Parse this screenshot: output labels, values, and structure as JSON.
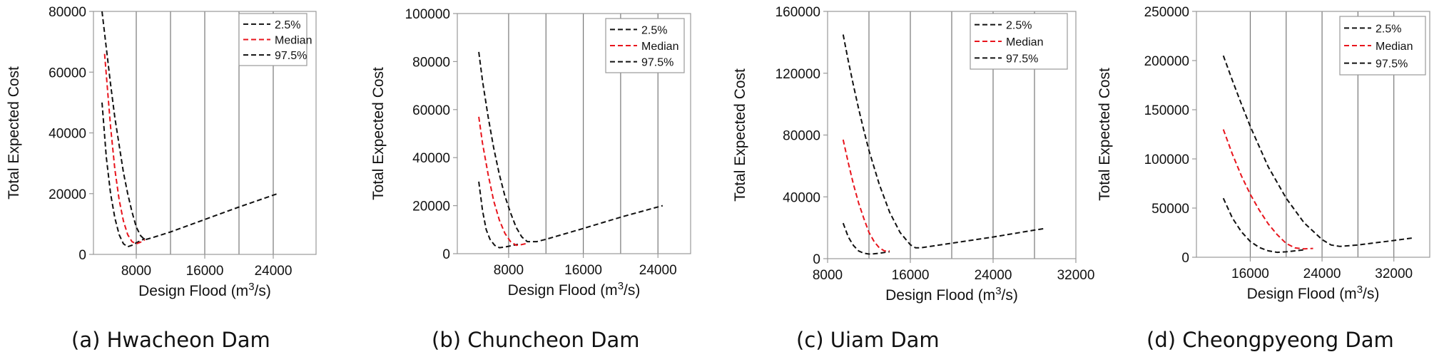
{
  "colors": {
    "bound": "#111111",
    "median": "#e8141c",
    "grid": "#777777",
    "frame": "#999999"
  },
  "chart_data": [
    {
      "type": "line",
      "caption": "(a) Hwacheon Dam",
      "xlabel": "Design Flood (m",
      "xlabel_sup": "3",
      "xlabel_end": "/s)",
      "ylabel": "Total Expected Cost",
      "xlim": [
        3000,
        29000
      ],
      "ylim": [
        0,
        80000
      ],
      "xticks": [
        8000,
        16000,
        24000
      ],
      "xtick_labels": [
        "8000",
        "16000",
        "24000"
      ],
      "yticks": [
        0,
        20000,
        40000,
        60000,
        80000
      ],
      "ytick_labels": [
        "0",
        "20000",
        "40000",
        "60000",
        "80000"
      ],
      "vgrid": [
        8000,
        12000,
        16000,
        20000,
        24000
      ],
      "hgrid": [],
      "legend": [
        "2.5%",
        "Median",
        "97.5%"
      ],
      "series": [
        {
          "name": "2.5%",
          "x": [
            4000,
            4500,
            5000,
            5500,
            6000,
            6500,
            7000,
            7500,
            8000,
            9000
          ],
          "y": [
            50000,
            32000,
            20000,
            12000,
            6500,
            3500,
            2500,
            3000,
            3800,
            5200
          ]
        },
        {
          "name": "Median",
          "x": [
            4300,
            5000,
            5500,
            6000,
            6500,
            7000,
            7500,
            8000,
            8500,
            9000
          ],
          "y": [
            66000,
            42000,
            28000,
            18000,
            11000,
            6500,
            4200,
            3500,
            4000,
            4800
          ]
        },
        {
          "name": "97.5%",
          "x": [
            4000,
            4500,
            5000,
            5500,
            6000,
            6500,
            7000,
            7500,
            8000,
            8500,
            9000,
            10000,
            12000,
            16000,
            20000,
            24500
          ],
          "y": [
            80000,
            68000,
            56000,
            45000,
            36000,
            27000,
            20000,
            14000,
            9000,
            6200,
            4800,
            5600,
            7400,
            11500,
            15600,
            20000
          ]
        }
      ]
    },
    {
      "type": "line",
      "caption": "(b) Chuncheon Dam",
      "xlabel": "Design Flood (m",
      "xlabel_sup": "3",
      "xlabel_end": "/s)",
      "ylabel": "Total Expected Cost",
      "xlim": [
        2500,
        27500
      ],
      "ylim": [
        0,
        100000
      ],
      "xticks": [
        8000,
        16000,
        24000
      ],
      "xtick_labels": [
        "8000",
        "16000",
        "24000"
      ],
      "yticks": [
        0,
        20000,
        40000,
        60000,
        80000,
        100000
      ],
      "ytick_labels": [
        "0",
        "20000",
        "40000",
        "60000",
        "80000",
        "100000"
      ],
      "vgrid": [
        8000,
        12000,
        16000,
        20000,
        24000
      ],
      "hgrid": [],
      "legend": [
        "2.5%",
        "Median",
        "97.5%"
      ],
      "series": [
        {
          "name": "2.5%",
          "x": [
            4800,
            5200,
            5600,
            6000,
            6500,
            7000,
            7500,
            8000,
            8500,
            9000
          ],
          "y": [
            30000,
            18000,
            10000,
            6000,
            3500,
            2500,
            2700,
            3100,
            3500,
            3900
          ]
        },
        {
          "name": "Median",
          "x": [
            4800,
            5200,
            5800,
            6400,
            7000,
            7600,
            8200,
            8800,
            9400,
            10000
          ],
          "y": [
            57000,
            46000,
            33000,
            22000,
            14000,
            8500,
            5000,
            3500,
            3800,
            4300
          ]
        },
        {
          "name": "97.5%",
          "x": [
            4800,
            5200,
            5800,
            6400,
            7000,
            7600,
            8200,
            8800,
            9400,
            10000,
            11000,
            12000,
            16000,
            20000,
            24500
          ],
          "y": [
            84000,
            72000,
            57000,
            44000,
            33000,
            24000,
            17000,
            11000,
            7000,
            5000,
            5000,
            6000,
            10500,
            15200,
            20000
          ]
        }
      ]
    },
    {
      "type": "line",
      "caption": "(c) Uiam Dam",
      "xlabel": "Design Flood (m",
      "xlabel_sup": "3",
      "xlabel_end": "/s)",
      "ylabel": "Total Expected Cost",
      "xlim": [
        8000,
        32000
      ],
      "ylim": [
        0,
        160000
      ],
      "xticks": [
        8000,
        16000,
        24000,
        32000
      ],
      "xtick_labels": [
        "8000",
        "16000",
        "24000",
        "32000"
      ],
      "yticks": [
        0,
        40000,
        80000,
        120000,
        160000
      ],
      "ytick_labels": [
        "0",
        "40000",
        "80000",
        "120000",
        "160000"
      ],
      "vgrid": [
        12000,
        16000,
        20000,
        24000,
        28000
      ],
      "hgrid": [],
      "legend": [
        "2.5%",
        "Median",
        "97.5%"
      ],
      "series": [
        {
          "name": "2.5%",
          "x": [
            9500,
            10000,
            10500,
            11000,
            11500,
            12000,
            12500,
            13000,
            14000
          ],
          "y": [
            23000,
            14000,
            8500,
            5000,
            3500,
            3000,
            3200,
            3500,
            4500
          ]
        },
        {
          "name": "Median",
          "x": [
            9500,
            10000,
            10500,
            11000,
            11500,
            12000,
            12500,
            13000,
            13500,
            14000
          ],
          "y": [
            77000,
            62000,
            48000,
            36000,
            26000,
            17000,
            11000,
            7000,
            5000,
            5000
          ]
        },
        {
          "name": "97.5%",
          "x": [
            9500,
            10000,
            10500,
            11000,
            11500,
            12000,
            13000,
            14000,
            15000,
            16000,
            16500,
            17000,
            20000,
            24000,
            28000,
            29000
          ],
          "y": [
            145000,
            128000,
            112000,
            97000,
            83000,
            70000,
            48000,
            30000,
            17000,
            9000,
            7000,
            7000,
            10000,
            14000,
            18500,
            19500
          ]
        }
      ]
    },
    {
      "type": "line",
      "caption": "(d) Cheongpyeong Dam",
      "xlabel": "Design Flood (m",
      "xlabel_sup": "3",
      "xlabel_end": "/s)",
      "ylabel": "Total Expected Cost",
      "xlim": [
        10000,
        36000
      ],
      "ylim": [
        0,
        250000
      ],
      "xticks": [
        16000,
        24000,
        32000
      ],
      "xtick_labels": [
        "16000",
        "24000",
        "32000"
      ],
      "yticks": [
        0,
        50000,
        100000,
        150000,
        200000,
        250000
      ],
      "ytick_labels": [
        "0",
        "50000",
        "100000",
        "150000",
        "200000",
        "250000"
      ],
      "vgrid": [
        16000,
        20000,
        24000,
        28000,
        32000
      ],
      "hgrid": [],
      "legend": [
        "2.5%",
        "Median",
        "97.5%"
      ],
      "series": [
        {
          "name": "2.5%",
          "x": [
            13000,
            14000,
            15000,
            16000,
            17000,
            18000,
            19000,
            20000,
            21000,
            22000
          ],
          "y": [
            60000,
            40000,
            26000,
            16000,
            10000,
            6500,
            5000,
            5500,
            6500,
            7500
          ]
        },
        {
          "name": "Median",
          "x": [
            13000,
            14000,
            15000,
            16000,
            17000,
            18000,
            19000,
            20000,
            21000,
            22000,
            23000
          ],
          "y": [
            130000,
            105000,
            83000,
            64000,
            48000,
            34000,
            23000,
            14000,
            9500,
            8500,
            9000
          ]
        },
        {
          "name": "97.5%",
          "x": [
            13000,
            14000,
            15000,
            16000,
            18000,
            20000,
            22000,
            24000,
            25000,
            26000,
            28000,
            32000,
            34000
          ],
          "y": [
            205000,
            180000,
            156000,
            133000,
            92000,
            60000,
            35000,
            18000,
            12500,
            11000,
            12500,
            17000,
            19500
          ]
        }
      ]
    }
  ]
}
